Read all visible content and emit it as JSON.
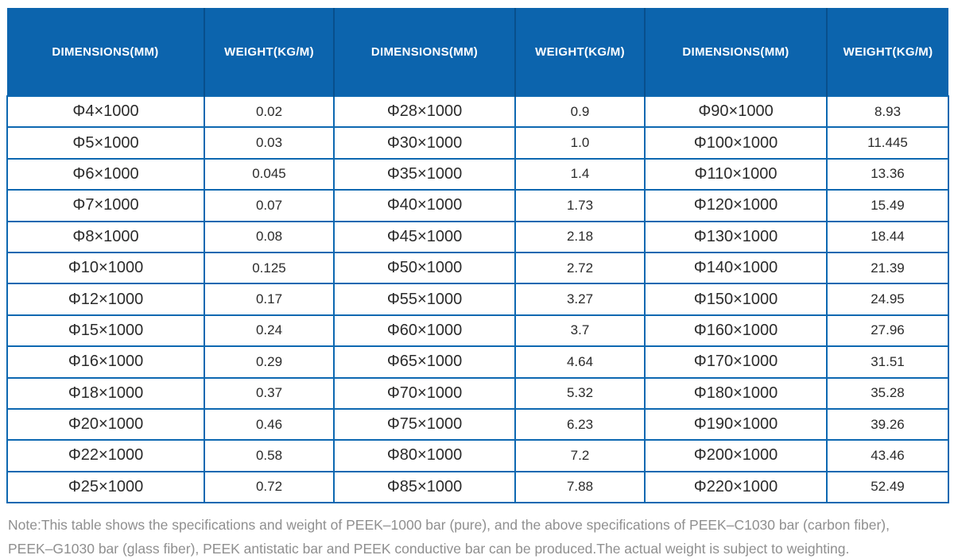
{
  "colors": {
    "header_background": "#0c64ad",
    "header_divider": "#084f8c",
    "grid_border": "#0d68b1",
    "header_text": "#ffffff",
    "body_text": "#2b2b2b",
    "note_text": "#8f8f8f"
  },
  "table": {
    "header": [
      "DIMENSIONS(MM)",
      "WEIGHT(KG/M)",
      "DIMENSIONS(MM)",
      "WEIGHT(KG/M)",
      "DIMENSIONS(MM)",
      "WEIGHT(KG/M)"
    ],
    "rows": [
      [
        "Φ4×1000",
        "0.02",
        "Φ28×1000",
        "0.9",
        "Φ90×1000",
        "8.93"
      ],
      [
        "Φ5×1000",
        "0.03",
        "Φ30×1000",
        "1.0",
        "Φ100×1000",
        "11.445"
      ],
      [
        "Φ6×1000",
        "0.045",
        "Φ35×1000",
        "1.4",
        "Φ110×1000",
        "13.36"
      ],
      [
        "Φ7×1000",
        "0.07",
        "Φ40×1000",
        "1.73",
        "Φ120×1000",
        "15.49"
      ],
      [
        "Φ8×1000",
        "0.08",
        "Φ45×1000",
        "2.18",
        "Φ130×1000",
        "18.44"
      ],
      [
        "Φ10×1000",
        "0.125",
        "Φ50×1000",
        "2.72",
        "Φ140×1000",
        "21.39"
      ],
      [
        "Φ12×1000",
        "0.17",
        "Φ55×1000",
        "3.27",
        "Φ150×1000",
        "24.95"
      ],
      [
        "Φ15×1000",
        "0.24",
        "Φ60×1000",
        "3.7",
        "Φ160×1000",
        "27.96"
      ],
      [
        "Φ16×1000",
        "0.29",
        "Φ65×1000",
        "4.64",
        "Φ170×1000",
        "31.51"
      ],
      [
        "Φ18×1000",
        "0.37",
        "Φ70×1000",
        "5.32",
        "Φ180×1000",
        "35.28"
      ],
      [
        "Φ20×1000",
        "0.46",
        "Φ75×1000",
        "6.23",
        "Φ190×1000",
        "39.26"
      ],
      [
        "Φ22×1000",
        "0.58",
        "Φ80×1000",
        "7.2",
        "Φ200×1000",
        "43.46"
      ],
      [
        "Φ25×1000",
        "0.72",
        "Φ85×1000",
        "7.88",
        "Φ220×1000",
        "52.49"
      ]
    ]
  },
  "note": {
    "lines": [
      "Note:This table shows the specifications and weight of PEEK–1000 bar (pure), and the above specifications of PEEK–C1030 bar (carbon fiber),",
      "PEEK–G1030 bar (glass fiber), PEEK antistatic bar and PEEK conductive bar can be produced.The actual weight is subject to weighting."
    ]
  }
}
